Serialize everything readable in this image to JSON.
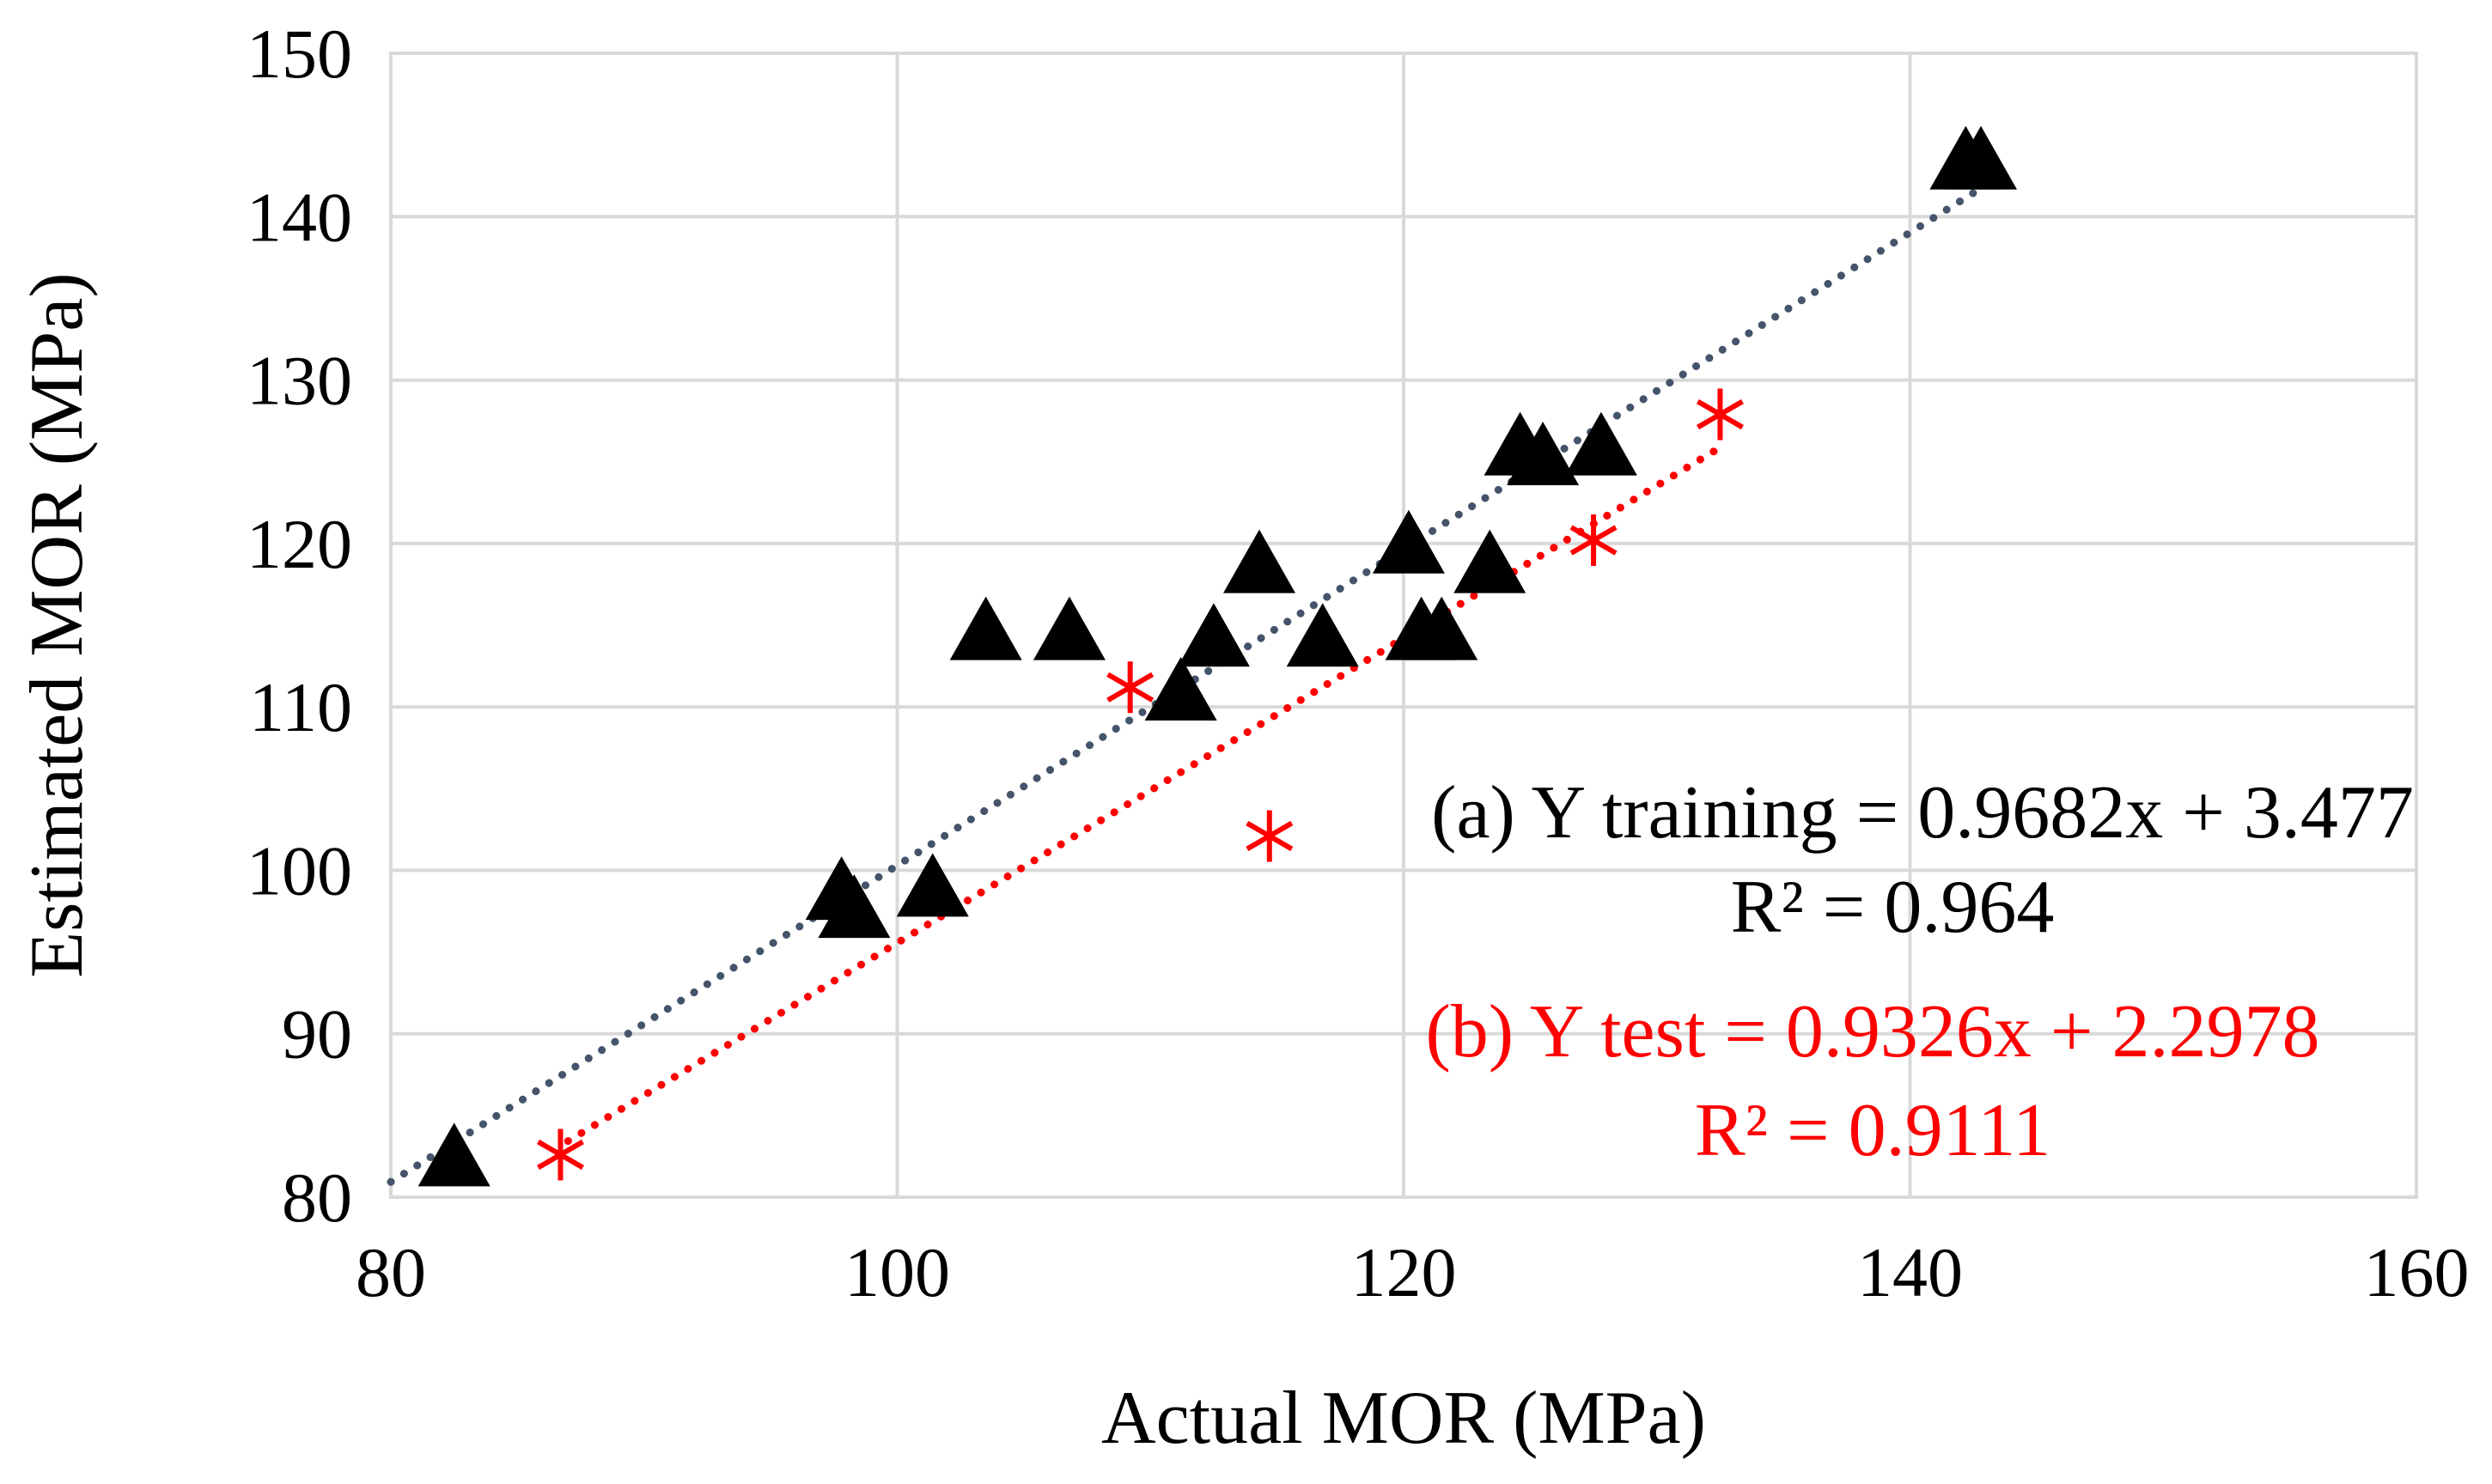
{
  "chart_data": {
    "type": "scatter",
    "title": "",
    "xlabel": "Actual MOR (MPa)",
    "ylabel": "Estimated MOR (MPa)",
    "xlim": [
      80,
      160
    ],
    "ylim": [
      80,
      150
    ],
    "xticks": [
      80,
      100,
      120,
      140,
      160
    ],
    "yticks": [
      80,
      90,
      100,
      110,
      120,
      130,
      140,
      150
    ],
    "grid": true,
    "colors": {
      "training_marker": "#000000",
      "training_trend": "#44546a",
      "test_marker": "#ff0000",
      "test_trend": "#ff0000",
      "grid": "#d9d9d9"
    },
    "series": [
      {
        "name": "Training",
        "marker": "triangle",
        "trendline": {
          "slope": 0.9682,
          "intercept": 3.477,
          "x_range": [
            80,
            142.5
          ]
        },
        "points": [
          {
            "x": 82.5,
            "y": 82.3
          },
          {
            "x": 97.8,
            "y": 98.6
          },
          {
            "x": 98.3,
            "y": 97.5
          },
          {
            "x": 101.4,
            "y": 98.8
          },
          {
            "x": 103.5,
            "y": 114.5
          },
          {
            "x": 106.8,
            "y": 114.5
          },
          {
            "x": 111.2,
            "y": 110.8
          },
          {
            "x": 112.5,
            "y": 114.1
          },
          {
            "x": 114.3,
            "y": 118.6
          },
          {
            "x": 116.8,
            "y": 114.1
          },
          {
            "x": 120.2,
            "y": 119.8
          },
          {
            "x": 120.7,
            "y": 114.5
          },
          {
            "x": 121.5,
            "y": 114.5
          },
          {
            "x": 123.4,
            "y": 118.6
          },
          {
            "x": 124.6,
            "y": 125.8
          },
          {
            "x": 125.5,
            "y": 125.2
          },
          {
            "x": 127.8,
            "y": 125.8
          },
          {
            "x": 142.2,
            "y": 143.3
          },
          {
            "x": 142.8,
            "y": 143.3
          }
        ]
      },
      {
        "name": "Test",
        "marker": "star",
        "trendline": {
          "slope": 0.9326,
          "intercept": 2.2978,
          "x_range": [
            87,
            132.5
          ]
        },
        "points": [
          {
            "x": 86.7,
            "y": 82.6
          },
          {
            "x": 109.2,
            "y": 111.2
          },
          {
            "x": 114.7,
            "y": 102.1
          },
          {
            "x": 127.5,
            "y": 120.2
          },
          {
            "x": 132.5,
            "y": 127.9
          }
        ]
      }
    ],
    "annotations": [
      {
        "text": "(a) Y training = 0.9682x + 3.477",
        "color": "#000000"
      },
      {
        "text": "R² = 0.964",
        "color": "#000000"
      },
      {
        "text": "(b) Y test = 0.9326x + 2.2978",
        "color": "#ff0000"
      },
      {
        "text": "R² = 0.9111",
        "color": "#ff0000"
      }
    ]
  }
}
